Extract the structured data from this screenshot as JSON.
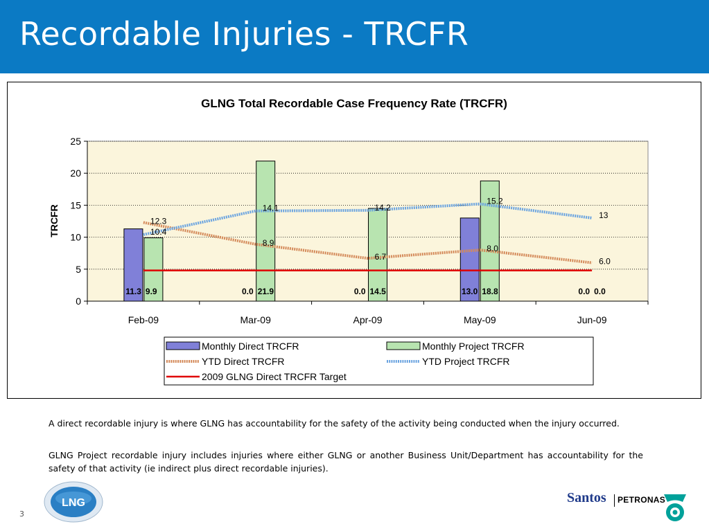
{
  "slide": {
    "title": "Recordable Injuries - TRCFR",
    "page_number": "3"
  },
  "colors": {
    "title_bar": "#0b7ac4",
    "direct_bar": "#8080d8",
    "project_bar": "#b8e4b0",
    "ytd_direct": "#d48a5a",
    "ytd_project": "#6ba4e0",
    "target": "#e00000",
    "plot_bg": "#fbf5dc"
  },
  "chart_data": {
    "type": "bar",
    "title": "GLNG Total Recordable Case Frequency Rate (TRCFR)",
    "xlabel": "",
    "ylabel": "TRCFR",
    "ylim": [
      0,
      25
    ],
    "yticks": [
      "0",
      "5",
      "10",
      "15",
      "20",
      "25"
    ],
    "categories": [
      "Feb-09",
      "Mar-09",
      "Apr-09",
      "May-09",
      "Jun-09"
    ],
    "grid": true,
    "series": [
      {
        "name": "Monthly Direct TRCFR",
        "kind": "bar",
        "values": [
          11.3,
          0.0,
          0.0,
          13.0,
          0.0
        ],
        "labels": [
          "11.3",
          "0.0",
          "0.0",
          "13.0",
          "0.0"
        ]
      },
      {
        "name": "Monthly Project TRCFR",
        "kind": "bar",
        "values": [
          9.9,
          21.9,
          14.5,
          18.8,
          0.0
        ],
        "labels": [
          "9.9",
          "21.9",
          "14.5",
          "18.8",
          "0.0"
        ]
      },
      {
        "name": "YTD Direct TRCFR",
        "kind": "line",
        "values": [
          12.3,
          8.9,
          6.7,
          8.0,
          6.0
        ],
        "labels": [
          "12.3",
          "8.9",
          "6.7",
          "8.0",
          "6.0"
        ]
      },
      {
        "name": "YTD Project TRCFR",
        "kind": "line",
        "values": [
          10.4,
          14.1,
          14.2,
          15.2,
          13
        ],
        "labels": [
          "10.4",
          "14.1",
          "14.2",
          "15.2",
          "13"
        ]
      },
      {
        "name": "2009 GLNG Direct TRCFR Target",
        "kind": "line",
        "values": [
          4.8,
          4.8,
          4.8,
          4.8,
          4.8
        ],
        "labels": []
      }
    ],
    "legend_position": "bottom"
  },
  "notes": [
    "A direct recordable injury is where GLNG has accountability for the safety of the activity being conducted when the injury occurred.",
    "GLNG Project recordable injury includes injuries where either GLNG or another Business Unit/Department has accountability for the safety of that activity (ie indirect plus direct recordable injuries)."
  ],
  "logos": {
    "lng": "LNG",
    "santos": "Santos",
    "petronas": "PETRONAS"
  }
}
